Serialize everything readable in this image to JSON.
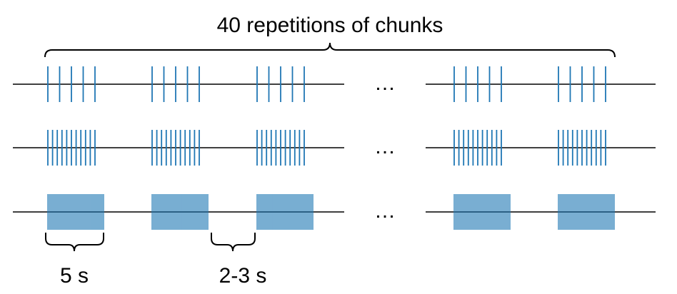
{
  "title": "40 repetitions of chunks",
  "ellipsis": "…",
  "duration_label": "5 s",
  "gap_label": "2-3 s",
  "spike_color": "#1f77b4",
  "line_color": "#000000",
  "rows": [
    {
      "spikes_per_chunk": 5
    },
    {
      "spikes_per_chunk": 11
    },
    {
      "spikes_per_chunk": 40
    }
  ],
  "chunks_shown": 5
}
